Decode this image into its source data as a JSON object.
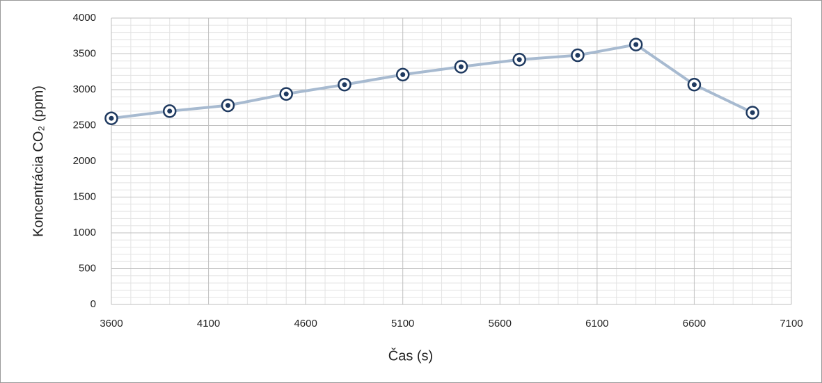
{
  "chart_data": {
    "type": "line",
    "x_label": "Čas (s)",
    "y_label": "Koncentrácia CO₂ (ppm)",
    "x": [
      3600,
      3900,
      4200,
      4500,
      4800,
      5100,
      5400,
      5700,
      6000,
      6300,
      6600,
      6900
    ],
    "series": [
      {
        "name": "CO2",
        "color": "#a7bad0",
        "marker_color": "#1f3a60",
        "values": [
          2600,
          2700,
          2780,
          2940,
          3070,
          3210,
          3320,
          3420,
          3480,
          3630,
          3070,
          2680
        ]
      }
    ],
    "xlim": [
      3600,
      7100
    ],
    "xticks": [
      3600,
      4100,
      4600,
      5100,
      5600,
      6100,
      6600,
      7100
    ],
    "ylim": [
      0,
      4000
    ],
    "yticks": [
      0,
      500,
      1000,
      1500,
      2000,
      2500,
      3000,
      3500,
      4000
    ],
    "grid": true,
    "minor_grid": true,
    "legend": false
  }
}
